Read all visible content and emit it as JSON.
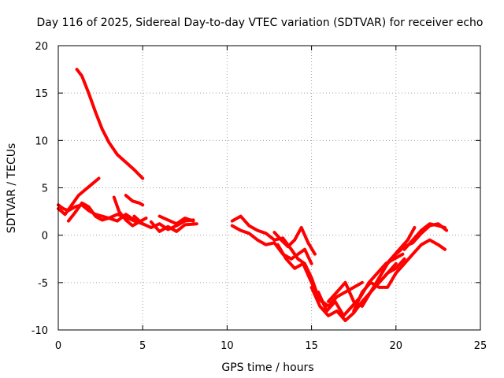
{
  "chart_data": {
    "type": "line",
    "title": "Day 116 of 2025, Sidereal Day-to-day VTEC variation (SDTVAR) for receiver echo",
    "xlabel": "GPS time / hours",
    "ylabel": "SDTVAR / TECUs",
    "xlim": [
      0,
      25
    ],
    "ylim": [
      -10,
      20
    ],
    "xticks": [
      0,
      5,
      10,
      15,
      20,
      25
    ],
    "yticks": [
      -10,
      -5,
      0,
      5,
      10,
      15,
      20
    ],
    "grid": true,
    "color": "#ff0000",
    "series": [
      {
        "name": "s1",
        "x": [
          1.1,
          1.4,
          1.8,
          2.2,
          2.6,
          3.0,
          3.5,
          4.0,
          4.5,
          5.0
        ],
        "y": [
          17.5,
          16.8,
          15.0,
          13.0,
          11.2,
          9.8,
          8.5,
          7.7,
          6.9,
          6.0
        ]
      },
      {
        "name": "s2",
        "x": [
          0.0,
          0.4,
          0.8,
          1.2,
          1.6,
          2.0,
          2.4
        ],
        "y": [
          2.8,
          2.2,
          3.2,
          4.2,
          4.8,
          5.4,
          6.0
        ]
      },
      {
        "name": "s3",
        "x": [
          0.0,
          0.3,
          0.6,
          1.0,
          1.4,
          1.8,
          2.2,
          2.6,
          3.0,
          3.5,
          4.0,
          4.5,
          5.0
        ],
        "y": [
          3.2,
          2.8,
          2.6,
          3.0,
          3.2,
          2.6,
          2.2,
          2.0,
          1.8,
          2.2,
          1.9,
          1.5,
          1.2
        ]
      },
      {
        "name": "s4",
        "x": [
          0.6,
          1.0,
          1.4,
          1.8,
          2.2,
          2.6,
          3.0,
          3.5,
          4.0,
          4.5
        ],
        "y": [
          1.5,
          2.4,
          3.4,
          3.0,
          2.0,
          1.6,
          1.8,
          1.5,
          2.2,
          1.6
        ]
      },
      {
        "name": "s5",
        "x": [
          3.3,
          3.6,
          4.0,
          4.4,
          4.8,
          5.2
        ],
        "y": [
          4.0,
          2.5,
          1.6,
          1.0,
          1.4,
          1.8
        ]
      },
      {
        "name": "s6",
        "x": [
          4.0,
          4.4,
          4.8,
          5.0
        ],
        "y": [
          4.2,
          3.6,
          3.4,
          3.2
        ]
      },
      {
        "name": "s7",
        "x": [
          4.5,
          5.0,
          5.5,
          6.0,
          6.5,
          7.0,
          7.5,
          8.0
        ],
        "y": [
          2.0,
          1.2,
          0.8,
          1.2,
          0.6,
          1.0,
          1.5,
          1.6
        ]
      },
      {
        "name": "s8",
        "x": [
          5.5,
          6.0,
          6.5,
          7.0,
          7.5,
          8.2
        ],
        "y": [
          1.4,
          0.4,
          0.9,
          0.4,
          1.1,
          1.2
        ]
      },
      {
        "name": "s9",
        "x": [
          6.0,
          6.5,
          7.0,
          7.5,
          8.0
        ],
        "y": [
          2.0,
          1.6,
          1.2,
          1.8,
          1.5
        ]
      },
      {
        "name": "s10",
        "x": [
          10.3,
          10.8,
          11.3,
          11.8,
          12.3,
          12.8,
          13.3,
          13.8,
          14.2,
          14.6,
          15.0,
          15.3,
          15.6
        ],
        "y": [
          1.5,
          2.0,
          1.0,
          0.5,
          0.2,
          -0.5,
          -0.3,
          -1.5,
          -2.5,
          -3.0,
          -4.5,
          -6.0,
          -7.0
        ]
      },
      {
        "name": "s11",
        "x": [
          10.3,
          10.8,
          11.3,
          11.8,
          12.3,
          12.8,
          13.3,
          13.8,
          14.2,
          14.6,
          15.0
        ],
        "y": [
          1.0,
          0.5,
          0.2,
          -0.5,
          -1.0,
          -0.8,
          -2.0,
          -2.5,
          -2.0,
          -1.5,
          -3.0
        ]
      },
      {
        "name": "s12",
        "x": [
          12.8,
          13.2,
          13.6,
          14.0,
          14.4,
          14.8,
          15.2
        ],
        "y": [
          0.3,
          -0.5,
          -1.2,
          -0.5,
          0.8,
          -0.8,
          -2.0
        ]
      },
      {
        "name": "s13",
        "x": [
          13.0,
          13.5,
          14.0,
          14.5,
          15.0,
          15.5,
          16.0,
          16.5,
          17.0,
          17.5,
          18.0
        ],
        "y": [
          -1.0,
          -2.5,
          -3.5,
          -3.0,
          -5.0,
          -6.8,
          -7.5,
          -6.5,
          -6.0,
          -5.5,
          -5.0
        ]
      },
      {
        "name": "s14",
        "x": [
          15.0,
          15.5,
          16.0,
          16.5,
          17.0,
          17.5,
          18.0,
          18.5,
          19.0,
          19.5,
          20.0
        ],
        "y": [
          -5.5,
          -7.5,
          -8.5,
          -8.0,
          -9.0,
          -8.2,
          -7.0,
          -6.0,
          -5.0,
          -4.0,
          -3.0
        ]
      },
      {
        "name": "s15",
        "x": [
          15.4,
          15.9,
          16.4,
          16.9,
          17.4,
          17.9,
          18.4,
          18.9,
          19.4,
          19.9,
          20.4
        ],
        "y": [
          -6.0,
          -8.0,
          -7.0,
          -8.5,
          -7.5,
          -6.5,
          -5.0,
          -4.0,
          -3.0,
          -2.5,
          -2.0
        ]
      },
      {
        "name": "s16",
        "x": [
          16.0,
          16.5,
          17.0,
          17.5,
          18.0,
          18.5,
          19.0,
          19.5,
          20.0,
          20.5
        ],
        "y": [
          -7.0,
          -6.0,
          -5.0,
          -7.0,
          -7.5,
          -6.0,
          -5.0,
          -4.0,
          -3.5,
          -2.5
        ]
      },
      {
        "name": "s17",
        "x": [
          17.5,
          18.0,
          18.5,
          19.0,
          19.5,
          20.0,
          20.5,
          21.0,
          21.5,
          22.0,
          22.5,
          22.9
        ],
        "y": [
          -8.0,
          -6.0,
          -5.0,
          -5.5,
          -5.5,
          -4.0,
          -3.0,
          -2.0,
          -1.0,
          -0.5,
          -1.0,
          -1.5
        ]
      },
      {
        "name": "s18",
        "x": [
          18.5,
          19.0,
          19.5,
          20.0,
          20.5,
          21.0,
          21.5,
          22.0,
          22.5,
          23.0
        ],
        "y": [
          -6.0,
          -4.5,
          -3.0,
          -2.0,
          -1.2,
          -0.8,
          0.2,
          1.0,
          1.2,
          0.5
        ]
      },
      {
        "name": "s19",
        "x": [
          19.2,
          19.7,
          20.2,
          20.7,
          21.1
        ],
        "y": [
          -3.5,
          -2.5,
          -1.5,
          -0.5,
          0.8
        ]
      },
      {
        "name": "s20",
        "x": [
          20.5,
          21.0,
          21.5,
          22.0,
          22.5,
          22.9
        ],
        "y": [
          -1.5,
          -0.5,
          0.5,
          1.2,
          1.0,
          0.8
        ]
      }
    ]
  }
}
